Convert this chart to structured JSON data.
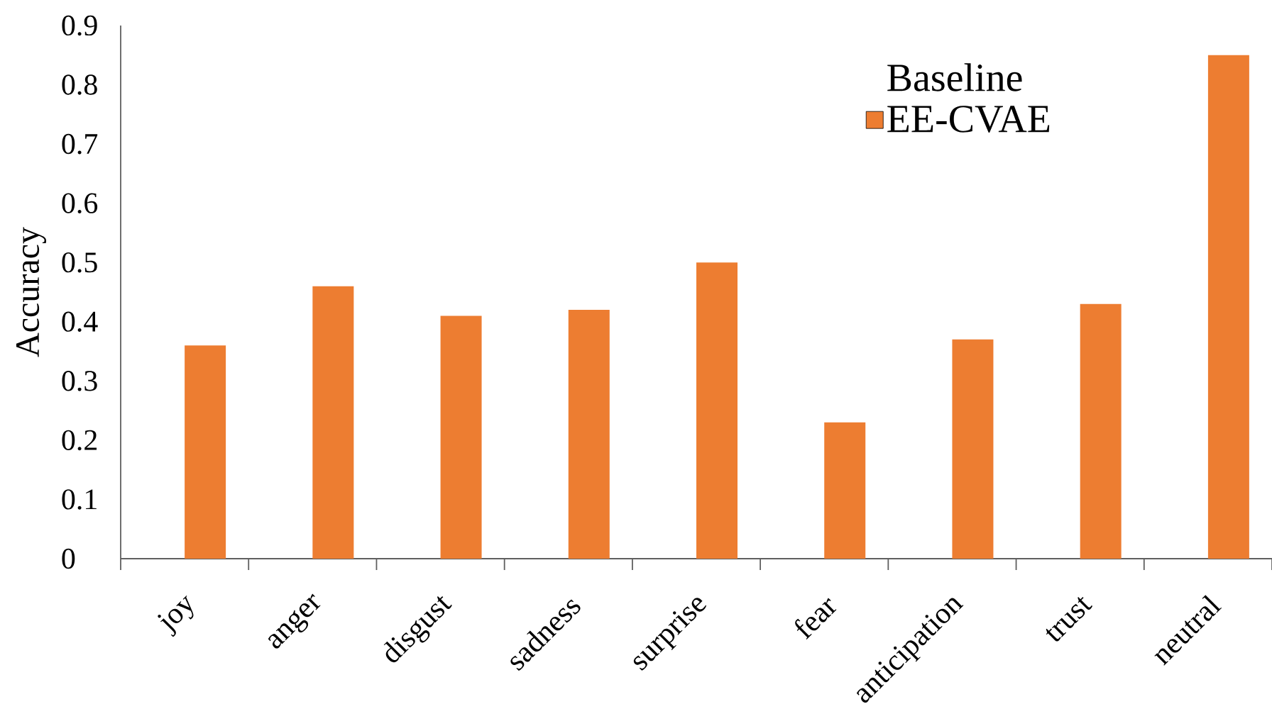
{
  "chart_data": {
    "type": "bar",
    "ylabel": "Accuracy",
    "categories": [
      "joy",
      "anger",
      "disgust",
      "sadness",
      "surprise",
      "fear",
      "anticipation",
      "trust",
      "neutral"
    ],
    "series": [
      {
        "name": "Baseline",
        "values": [
          null,
          null,
          null,
          null,
          null,
          null,
          null,
          null,
          null
        ]
      },
      {
        "name": "EE-CVAE",
        "color": "#ed7d31",
        "values": [
          0.36,
          0.46,
          0.41,
          0.42,
          0.5,
          0.23,
          0.37,
          0.43,
          0.85
        ]
      }
    ],
    "ylim": [
      0,
      0.9
    ],
    "yticks": [
      0,
      0.1,
      0.2,
      0.3,
      0.4,
      0.5,
      0.6,
      0.7,
      0.8,
      0.9
    ],
    "legend": "top right"
  }
}
